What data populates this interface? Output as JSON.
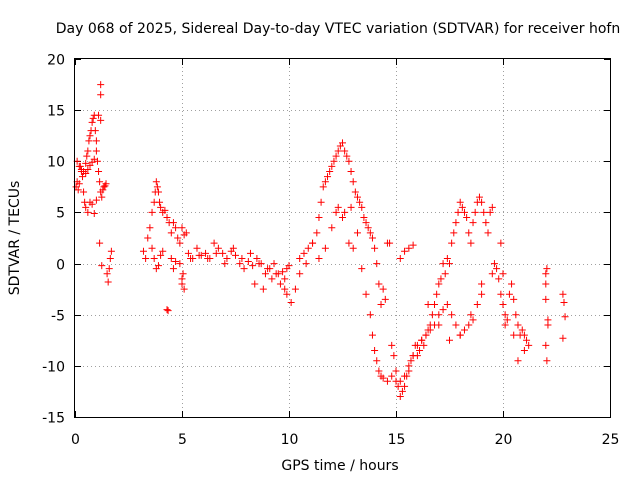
{
  "chart_data": {
    "type": "scatter",
    "title": "Day 068 of 2025, Sidereal Day-to-day VTEC variation (SDTVAR) for receiver hofn",
    "xlabel": "GPS time / hours",
    "ylabel": "SDTVAR / TECUs",
    "xlim": [
      0,
      25
    ],
    "ylim": [
      -15,
      20
    ],
    "xticks": [
      0,
      5,
      10,
      15,
      20,
      25
    ],
    "yticks": [
      -15,
      -10,
      -5,
      0,
      5,
      10,
      15,
      20
    ],
    "grid": true,
    "marker": "plus",
    "color": "#ff0000",
    "series": [
      {
        "name": "SDTVAR",
        "x": [
          0.05,
          0.1,
          0.15,
          0.2,
          0.25,
          0.3,
          0.35,
          0.4,
          0.45,
          0.5,
          0.55,
          0.6,
          0.65,
          0.7,
          0.75,
          0.8,
          0.85,
          0.9,
          0.95,
          1.0,
          1.05,
          1.1,
          1.15,
          1.2,
          1.25,
          1.3,
          1.35,
          1.4,
          1.45,
          1.5,
          1.55,
          1.6,
          1.65,
          1.7,
          0.1,
          0.2,
          0.3,
          0.4,
          0.5,
          0.6,
          0.7,
          0.8,
          0.9,
          1.0,
          1.1,
          1.2,
          0.5,
          0.6,
          0.7,
          0.8,
          0.9,
          1.0,
          1.2,
          1.2,
          1.15,
          1.25,
          3.2,
          3.3,
          3.4,
          3.5,
          3.6,
          3.7,
          3.75,
          3.8,
          3.85,
          3.9,
          3.95,
          4.0,
          4.1,
          4.2,
          4.3,
          4.4,
          4.5,
          4.6,
          4.7,
          4.8,
          4.9,
          5.0,
          5.1,
          5.2,
          3.6,
          3.7,
          3.8,
          3.9,
          4.0,
          4.1,
          4.5,
          4.6,
          4.7,
          4.9,
          5.0,
          5.1,
          4.3,
          4.35,
          5.0,
          5.05,
          5.3,
          5.5,
          5.7,
          5.9,
          6.1,
          6.3,
          6.5,
          6.7,
          6.9,
          7.1,
          7.3,
          7.5,
          7.7,
          7.9,
          8.1,
          8.3,
          8.5,
          8.7,
          8.9,
          9.1,
          9.3,
          9.5,
          9.7,
          9.9,
          10.0,
          5.4,
          5.8,
          6.2,
          6.6,
          7.0,
          7.4,
          7.8,
          8.2,
          8.6,
          9.0,
          9.4,
          9.8,
          8.4,
          8.8,
          9.2,
          9.6,
          9.8,
          9.9,
          10.1,
          10.3,
          10.5,
          10.7,
          10.9,
          11.1,
          11.3,
          11.4,
          11.5,
          11.6,
          11.7,
          11.8,
          11.9,
          12.0,
          12.1,
          12.2,
          12.3,
          12.4,
          12.5,
          12.6,
          12.7,
          12.8,
          12.9,
          13.0,
          13.1,
          13.2,
          13.3,
          13.4,
          13.5,
          13.6,
          13.7,
          13.8,
          13.9,
          14.0,
          14.1,
          14.2,
          14.3,
          14.4,
          14.5,
          10.5,
          10.8,
          11.1,
          11.4,
          11.7,
          12.0,
          12.3,
          12.6,
          12.9,
          12.2,
          12.5,
          12.8,
          13.0,
          13.2,
          13.4,
          13.6,
          13.8,
          13.9,
          14.0,
          14.1,
          14.2,
          14.3,
          14.4,
          14.6,
          14.8,
          15.0,
          15.2,
          15.4,
          15.6,
          15.8,
          14.6,
          14.7,
          14.8,
          14.9,
          15.0,
          15.1,
          15.2,
          15.3,
          15.4,
          15.5,
          15.6,
          15.7,
          15.8,
          15.9,
          16.0,
          16.1,
          16.2,
          16.3,
          16.4,
          16.5,
          16.6,
          16.7,
          16.8,
          16.9,
          17.0,
          17.1,
          17.2,
          17.3,
          17.4,
          17.5,
          17.6,
          17.7,
          17.8,
          17.9,
          18.0,
          18.1,
          18.2,
          18.3,
          18.4,
          18.5,
          18.6,
          18.7,
          18.8,
          18.9,
          19.0,
          19.1,
          19.2,
          19.3,
          19.4,
          19.5,
          15.2,
          15.4,
          15.6,
          15.8,
          16.0,
          16.2,
          16.4,
          16.6,
          16.8,
          17.0,
          17.2,
          17.4,
          17.6,
          17.8,
          18.0,
          18.2,
          18.4,
          18.6,
          18.8,
          19.0,
          16.5,
          17.0,
          17.5,
          18.0,
          18.5,
          19.0,
          19.5,
          19.6,
          19.7,
          19.8,
          19.9,
          20.0,
          20.1,
          20.2,
          20.3,
          20.4,
          20.5,
          20.6,
          20.7,
          20.8,
          20.9,
          21.0,
          21.1,
          21.2,
          19.9,
          20.0,
          20.1,
          20.5,
          20.7,
          21.0,
          22.0,
          22.0,
          22.05,
          22.1,
          22.0,
          22.05,
          22.1,
          22.0,
          22.8,
          22.85,
          22.9,
          22.8
        ],
        "y": [
          7.5,
          8.0,
          7.2,
          7.8,
          9.5,
          9.0,
          8.5,
          7.0,
          6.0,
          9.8,
          10.5,
          11.0,
          12.0,
          12.5,
          13.0,
          13.8,
          14.2,
          14.5,
          13.0,
          11.0,
          10.0,
          9.0,
          8.0,
          7.0,
          6.5,
          7.2,
          7.5,
          7.6,
          7.8,
          -1.0,
          -1.8,
          -0.5,
          0.5,
          1.2,
          10.0,
          9.5,
          9.2,
          9.0,
          8.8,
          9.2,
          9.6,
          9.9,
          10.2,
          12.0,
          14.5,
          17.5,
          5.5,
          5.0,
          6.0,
          5.8,
          4.9,
          6.2,
          16.5,
          14.0,
          2.0,
          -0.2,
          1.2,
          0.5,
          2.5,
          3.5,
          5.0,
          6.0,
          7.0,
          8.0,
          7.5,
          7.0,
          6.0,
          5.5,
          5.0,
          5.2,
          4.5,
          4.0,
          3.0,
          4.0,
          3.5,
          2.5,
          2.0,
          3.5,
          2.8,
          3.0,
          1.5,
          0.5,
          -0.5,
          -0.2,
          0.8,
          1.2,
          0.5,
          -0.5,
          0.2,
          0.0,
          -2.0,
          -2.5,
          -4.5,
          -4.6,
          -1.5,
          -1.0,
          1.0,
          0.5,
          1.5,
          0.8,
          1.0,
          0.5,
          2.0,
          1.5,
          1.0,
          0.5,
          1.2,
          0.8,
          0.0,
          -0.5,
          0.2,
          -0.2,
          0.5,
          0.0,
          -1.0,
          -0.5,
          0.0,
          -1.0,
          -0.8,
          -0.5,
          -0.2,
          0.5,
          0.8,
          0.5,
          1.0,
          0.0,
          1.5,
          0.5,
          1.0,
          0.0,
          -0.5,
          -1.0,
          -1.5,
          -2.0,
          -2.5,
          -1.5,
          -2.0,
          -2.5,
          -3.0,
          -3.8,
          -2.5,
          0.5,
          1.0,
          1.5,
          2.0,
          3.0,
          4.5,
          6.0,
          7.5,
          8.0,
          8.5,
          9.0,
          9.5,
          10.0,
          10.5,
          11.0,
          11.5,
          11.8,
          11.0,
          10.5,
          10.0,
          9.0,
          8.0,
          7.0,
          6.5,
          6.0,
          5.5,
          4.5,
          4.0,
          3.5,
          3.0,
          2.5,
          1.5,
          0.0,
          -2.0,
          -4.0,
          -2.5,
          -3.5,
          -1.0,
          0.0,
          2.0,
          0.5,
          1.5,
          3.5,
          5.5,
          5.0,
          5.5,
          5.0,
          4.5,
          2.0,
          1.5,
          3.0,
          -0.5,
          -3.0,
          -5.0,
          -7.0,
          -8.5,
          -9.5,
          -10.5,
          -11.0,
          -11.2,
          -11.5,
          -11.0,
          -10.5,
          0.5,
          1.2,
          1.5,
          1.8,
          2.0,
          2.0,
          -8.0,
          -9.0,
          -11.5,
          -12.0,
          -13.0,
          -12.5,
          -12.0,
          -11.0,
          -10.5,
          -9.5,
          -9.0,
          -8.0,
          -9.0,
          -8.5,
          -7.5,
          -8.0,
          -7.0,
          -6.5,
          -6.0,
          -5.0,
          -4.0,
          -3.0,
          -2.0,
          -1.5,
          0.0,
          -1.0,
          0.5,
          0.0,
          2.0,
          3.0,
          4.0,
          5.0,
          6.0,
          5.5,
          5.0,
          4.5,
          3.0,
          2.0,
          4.0,
          5.0,
          6.0,
          6.5,
          6.0,
          5.0,
          4.0,
          3.0,
          5.0,
          5.5,
          -11.5,
          -11.0,
          -10.0,
          -9.0,
          -8.0,
          -7.5,
          -7.0,
          -6.5,
          -6.0,
          -5.0,
          -4.5,
          -4.0,
          -5.0,
          -6.0,
          -7.0,
          -6.5,
          -6.0,
          -5.5,
          -4.0,
          -2.0,
          -4.0,
          -6.0,
          -7.5,
          -7.0,
          -5.0,
          -3.0,
          -1.0,
          0.0,
          -0.5,
          -1.5,
          -3.0,
          -4.0,
          -5.0,
          -5.5,
          -3.0,
          -2.0,
          -3.5,
          -5.0,
          -6.0,
          -7.0,
          -6.5,
          -7.0,
          -7.5,
          -8.0,
          2.0,
          -1.0,
          -6.0,
          -7.0,
          -9.5,
          -8.5,
          -1.0,
          -2.0,
          -0.5,
          -6.0,
          -8.0,
          -9.5,
          -5.5,
          -3.5,
          -3.0,
          -3.8,
          -5.2,
          -7.3
        ]
      }
    ]
  }
}
